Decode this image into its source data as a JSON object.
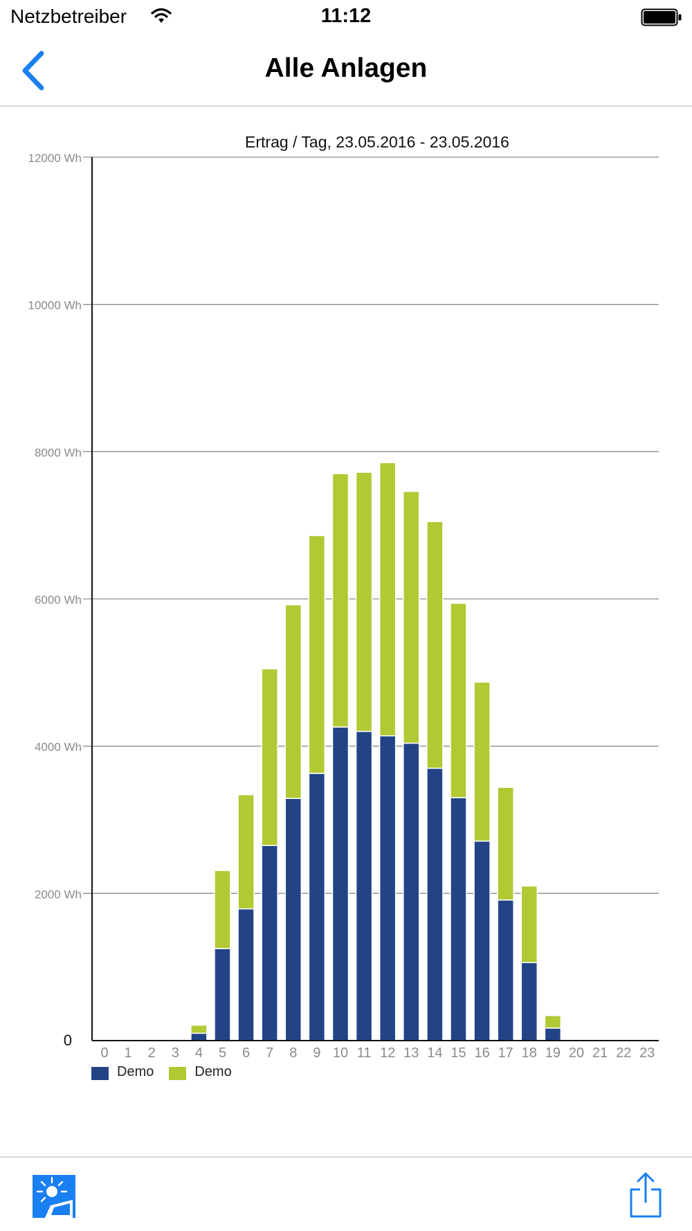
{
  "status_bar": {
    "carrier": "Netzbetreiber",
    "time": "11:12",
    "wifi_icon": "wifi-icon",
    "battery_icon": "battery-full-icon"
  },
  "nav": {
    "title": "Alle Anlagen",
    "back_icon": "chevron-left-icon"
  },
  "colors": {
    "accent": "#1a7ff0",
    "series_blue": "#224487",
    "series_green": "#b1c933"
  },
  "chart_data": {
    "type": "bar",
    "stacked": true,
    "title": "Ertrag / Tag, 23.05.2016 - 23.05.2016",
    "xlabel": "",
    "ylabel": "",
    "ylim": [
      0,
      12000
    ],
    "y_ticks": [
      {
        "value": 0,
        "label": "0"
      },
      {
        "value": 2000,
        "label": "2000 Wh"
      },
      {
        "value": 4000,
        "label": "4000 Wh"
      },
      {
        "value": 6000,
        "label": "6000 Wh"
      },
      {
        "value": 8000,
        "label": "8000 Wh"
      },
      {
        "value": 10000,
        "label": "10000 Wh"
      },
      {
        "value": 12000,
        "label": "12000 Wh"
      }
    ],
    "grid": true,
    "legend_position": "bottom-left",
    "categories": [
      "0",
      "1",
      "2",
      "3",
      "4",
      "5",
      "6",
      "7",
      "8",
      "9",
      "10",
      "11",
      "12",
      "13",
      "14",
      "15",
      "16",
      "17",
      "18",
      "19",
      "20",
      "21",
      "22",
      "23"
    ],
    "series": [
      {
        "name": "Demo",
        "color": "#224487",
        "values": [
          0,
          0,
          0,
          0,
          100,
          1250,
          1790,
          2650,
          3290,
          3630,
          4260,
          4200,
          4140,
          4040,
          3700,
          3300,
          2710,
          1910,
          1060,
          170,
          0,
          0,
          0,
          0
        ]
      },
      {
        "name": "Demo",
        "color": "#b1c933",
        "values": [
          0,
          0,
          0,
          0,
          110,
          1060,
          1550,
          2400,
          2630,
          3230,
          3440,
          3520,
          3710,
          3420,
          3350,
          2640,
          2160,
          1530,
          1040,
          170,
          0,
          0,
          0,
          0
        ]
      }
    ]
  },
  "toolbar": {
    "left_icon": "sun-panel-icon",
    "right_icon": "share-icon"
  }
}
